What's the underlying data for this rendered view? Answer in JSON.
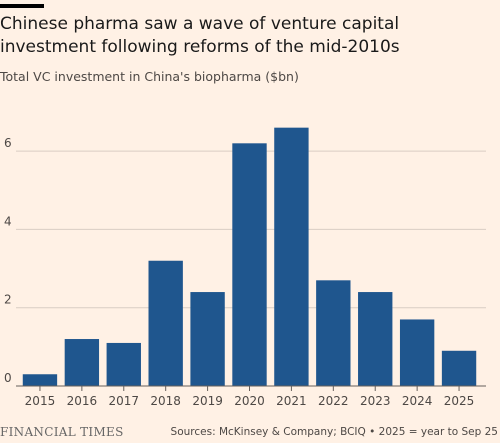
{
  "chart_data": {
    "type": "bar",
    "title": "Chinese pharma saw a wave of venture capital investment following reforms of the mid-2010s",
    "subtitle": "Total VC investment in China's biopharma ($bn)",
    "categories": [
      "2015",
      "2016",
      "2017",
      "2018",
      "2019",
      "2020",
      "2021",
      "2022",
      "2023",
      "2024",
      "2025"
    ],
    "values": [
      0.3,
      1.2,
      1.1,
      3.2,
      2.4,
      6.2,
      6.6,
      2.7,
      2.4,
      1.7,
      0.9
    ],
    "color": "#1f568e",
    "ylim": [
      0,
      7
    ],
    "yticks": [
      0,
      2,
      4,
      6
    ],
    "grid": true,
    "brand": "FINANCIAL TIMES",
    "source": "Sources: McKinsey & Company; BCIQ • 2025 = year to Sep 25"
  }
}
